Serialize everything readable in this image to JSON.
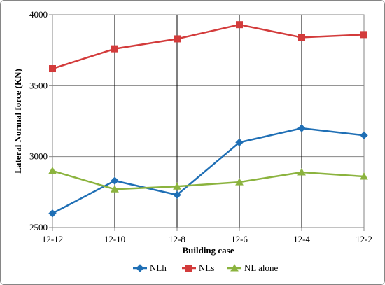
{
  "chart_data": {
    "type": "line",
    "title": "",
    "xlabel": "Building case",
    "ylabel": "Lateral Normal force (KN)",
    "categories": [
      "12-12",
      "12-10",
      "12-8",
      "12-6",
      "12-4",
      "12-2"
    ],
    "ylim": [
      2500,
      4000
    ],
    "yticks": [
      2500,
      3000,
      3500,
      4000
    ],
    "grid": {
      "horizontal": true,
      "vertical": true
    },
    "legend_position": "bottom",
    "series": [
      {
        "name": "NLh",
        "color": "#1f6fb5",
        "marker": "diamond",
        "values": [
          2600,
          2830,
          2730,
          3100,
          3200,
          3150
        ]
      },
      {
        "name": "NLs",
        "color": "#d33b3b",
        "marker": "square",
        "values": [
          3620,
          3760,
          3830,
          3930,
          3840,
          3860
        ]
      },
      {
        "name": "NL alone",
        "color": "#8bb33e",
        "marker": "triangle",
        "values": [
          2900,
          2770,
          2790,
          2820,
          2890,
          2860
        ]
      }
    ]
  }
}
